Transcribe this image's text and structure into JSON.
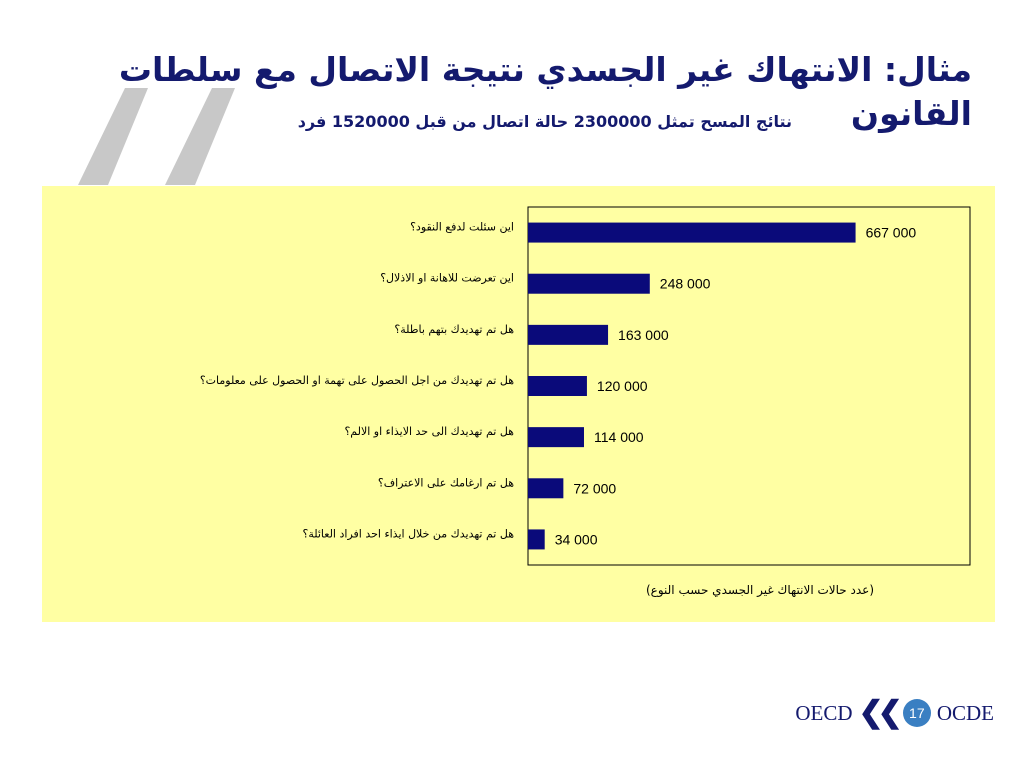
{
  "slide": {
    "title": "مثال: الانتهاك غير الجسدي نتيجة الاتصال مع سلطات القانون",
    "subtitle": "نتائج المسح تمثل 2300000 حالة اتصال من قبل 1520000 فرد",
    "page_number": "17"
  },
  "footer": {
    "logo_left": "OECD",
    "logo_right": "OCDE"
  },
  "colors": {
    "title": "#141a6e",
    "bar": "#0a0a7a",
    "panel_background": "#ffffa3",
    "quote_gray": "#c8c8c8",
    "page_badge": "#3a7fc2"
  },
  "chart_data": {
    "type": "bar",
    "orientation": "horizontal",
    "categories": [
      "اين سئلت لدفع النقود؟",
      "اين تعرضت للاهانة او الاذلال؟",
      "هل تم تهديدك بتهم باطلة؟",
      "هل تم تهديدك من اجل الحصول على تهمة او الحصول على معلومات؟",
      "هل تم تهديدك الى حد الايذاء او الالم؟",
      "هل تم ارغامك على الاعتراف؟",
      "هل تم تهديدك من خلال ايذاء احد افراد العائلة؟"
    ],
    "values": [
      667000,
      248000,
      163000,
      120000,
      114000,
      72000,
      34000
    ],
    "data_labels": [
      "667 000",
      "248 000",
      "163 000",
      "120 000",
      "114 000",
      "72 000",
      "34 000"
    ],
    "xlabel": "(عدد حالات الانتهاك غير الجسدي حسب النوع)",
    "xlim": [
      0,
      900000
    ],
    "grid": false,
    "legend": "none"
  }
}
